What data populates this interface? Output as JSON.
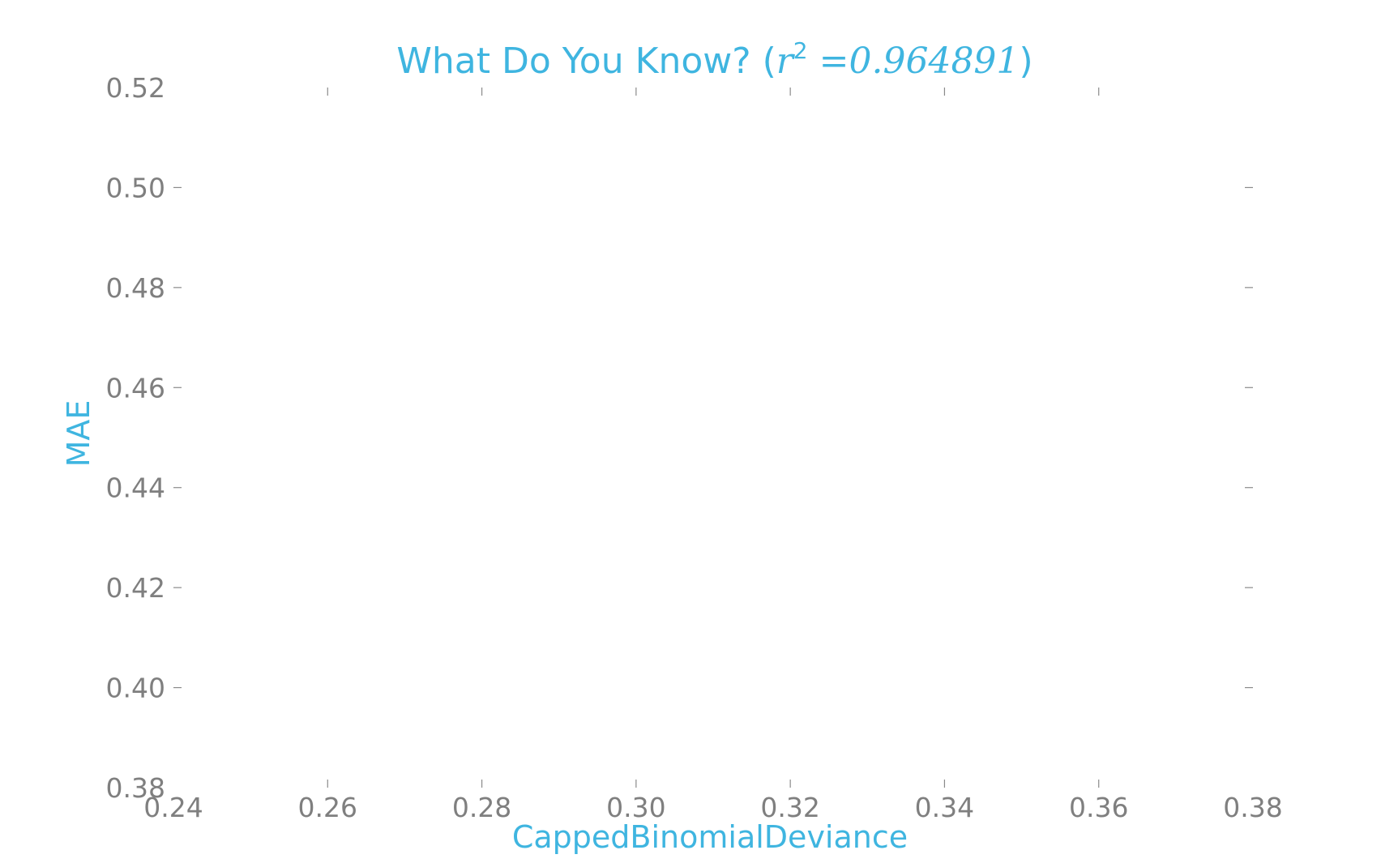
{
  "chart_data": {
    "type": "scatter",
    "title_prefix": "What Do You Know? (",
    "title_math": "r",
    "title_sup": "2",
    "title_value": " =0.964891",
    "title_suffix": ")",
    "xlabel": "CappedBinomialDeviance",
    "ylabel": "MAE",
    "xlim": [
      0.24,
      0.38
    ],
    "ylim": [
      0.38,
      0.52
    ],
    "xticks": [
      "0.24",
      "0.26",
      "0.28",
      "0.30",
      "0.32",
      "0.34",
      "0.36",
      "0.38"
    ],
    "yticks": [
      "0.38",
      "0.40",
      "0.42",
      "0.44",
      "0.46",
      "0.48",
      "0.50",
      "0.52"
    ],
    "grid": false,
    "series": [
      {
        "x": [],
        "y": []
      }
    ]
  }
}
